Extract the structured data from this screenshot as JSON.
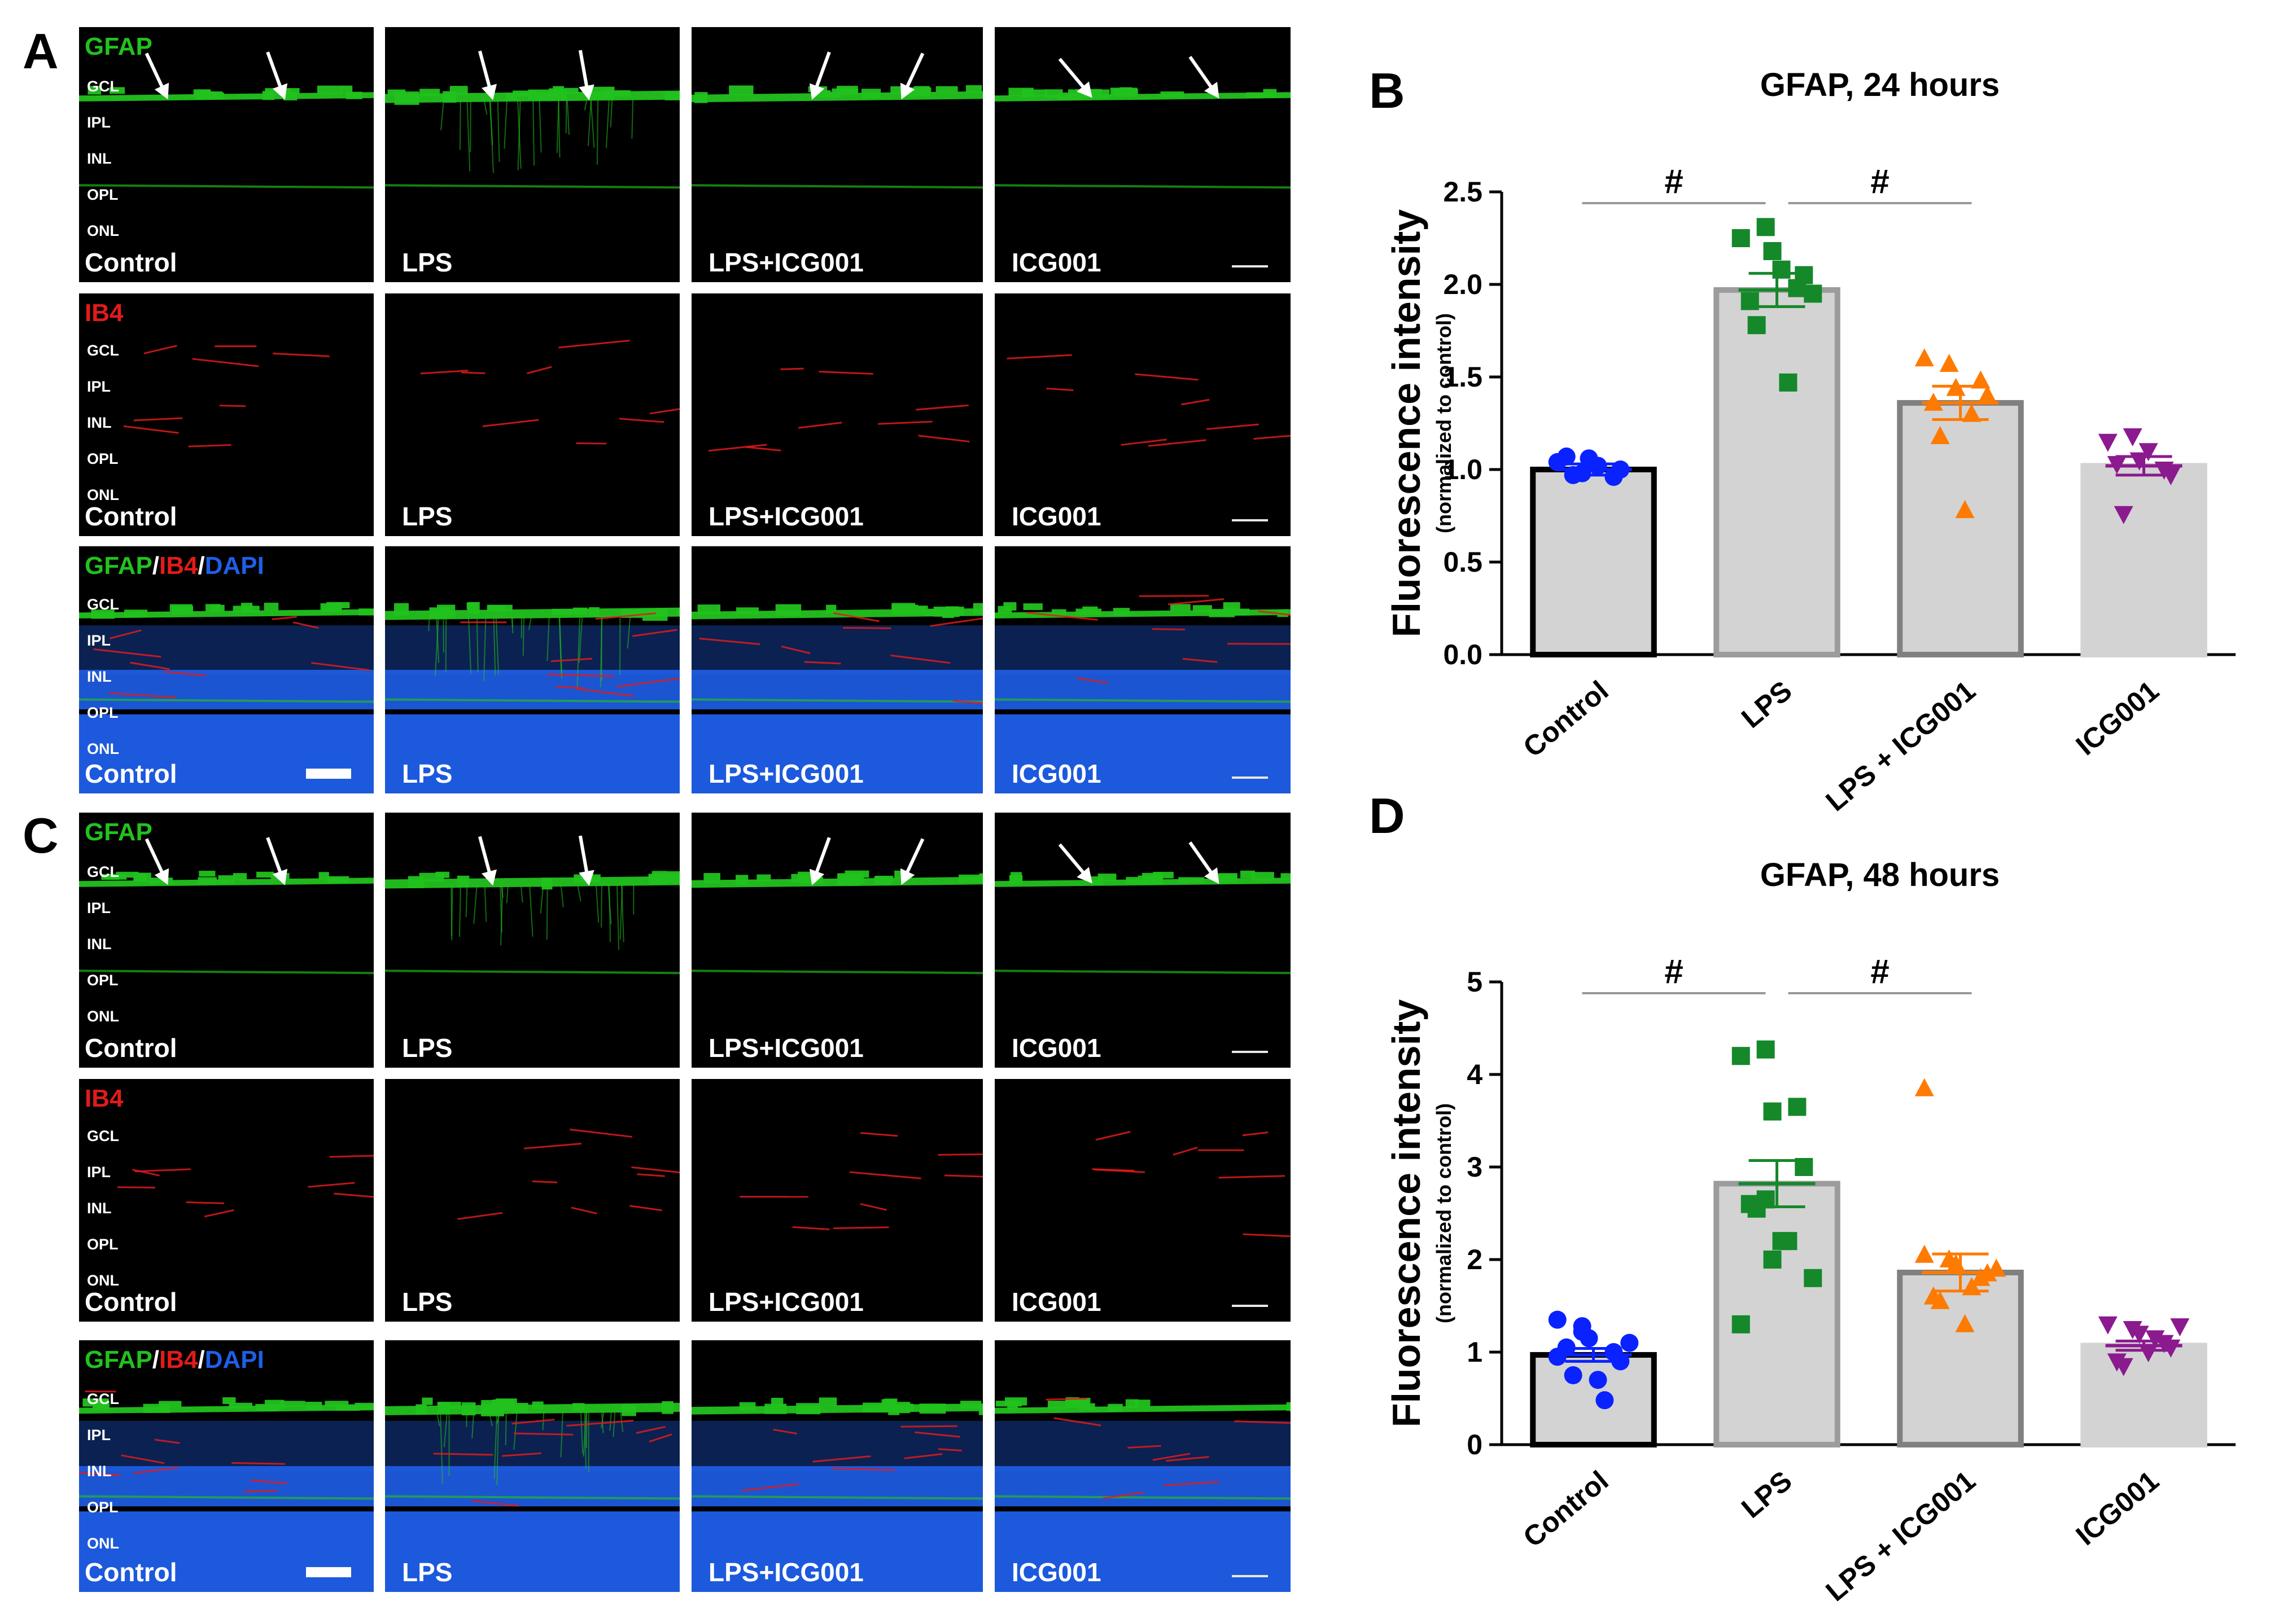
{
  "panels": {
    "a": "A",
    "b": "B",
    "c": "C",
    "d": "D"
  },
  "labels": {
    "gfap": "GFAP",
    "ib4": "IB4",
    "dapi": "DAPI",
    "slash": "/",
    "layers": [
      "GCL",
      "IPL",
      "INL",
      "OPL",
      "ONL"
    ],
    "conditions": [
      "Control",
      "LPS",
      "LPS+ICG001",
      "ICG001"
    ]
  },
  "colors": {
    "gfap": "#22c21e",
    "ib4": "#e11b1b",
    "dapi": "#1f5ee8",
    "control": "#0a22ff",
    "lps": "#15882a",
    "lps_icg": "#ff7a00",
    "icg": "#8b1a8f",
    "bar": "#d3d3d3"
  },
  "chart_data": [
    {
      "type": "bar",
      "title": "GFAP, 24 hours",
      "ylabel": "Fluorescence intensity",
      "ylabel_sub": "(normalized to control)",
      "categories": [
        "Control",
        "LPS",
        "LPS + ICG001",
        "ICG001"
      ],
      "values": [
        1.0,
        1.97,
        1.36,
        1.02
      ],
      "sem": [
        0.03,
        0.09,
        0.09,
        0.05
      ],
      "ylim": [
        0,
        2.5
      ],
      "yticks": [
        "0.0",
        "0.5",
        "1.0",
        "1.5",
        "2.0",
        "2.5"
      ],
      "significance": [
        {
          "from": 0,
          "to": 1,
          "label": "#"
        },
        {
          "from": 1,
          "to": 2,
          "label": "#"
        }
      ],
      "points": [
        [
          1.04,
          0.98,
          1.06,
          0.96,
          1.0,
          1.07,
          0.97,
          1.02
        ],
        [
          2.25,
          2.31,
          2.18,
          1.98,
          2.05,
          1.91,
          1.78,
          2.08,
          1.47,
          1.95
        ],
        [
          1.6,
          1.57,
          1.44,
          1.48,
          1.4,
          1.36,
          1.18,
          0.78,
          1.3
        ],
        [
          1.15,
          1.18,
          1.05,
          1.0,
          0.97,
          1.03,
          0.76,
          1.1
        ]
      ]
    },
    {
      "type": "bar",
      "title": "GFAP, 48 hours",
      "ylabel": "Fluorescence intensity",
      "ylabel_sub": "(normalized to control)",
      "categories": [
        "Control",
        "LPS",
        "LPS + ICG001",
        "ICG001"
      ],
      "values": [
        0.97,
        2.82,
        1.86,
        1.07
      ],
      "sem": [
        0.07,
        0.25,
        0.2,
        0.05
      ],
      "ylim": [
        0,
        5
      ],
      "yticks": [
        "0",
        "1",
        "2",
        "3",
        "4",
        "5"
      ],
      "significance": [
        {
          "from": 0,
          "to": 1,
          "label": "#"
        },
        {
          "from": 1,
          "to": 2,
          "label": "#"
        }
      ],
      "points": [
        [
          1.35,
          1.28,
          1.15,
          1.0,
          0.9,
          1.05,
          0.75,
          0.7,
          0.48,
          1.1,
          0.95,
          1.22
        ],
        [
          4.2,
          4.27,
          3.6,
          3.65,
          3.0,
          2.6,
          2.55,
          2.2,
          2.2,
          1.8,
          1.3,
          2.65,
          2.0
        ],
        [
          3.85,
          2.0,
          1.95,
          1.8,
          1.85,
          1.6,
          1.55,
          1.3,
          1.7,
          1.9,
          2.05
        ],
        [
          1.3,
          1.25,
          1.2,
          1.1,
          1.05,
          0.9,
          0.85,
          1.0,
          1.15,
          1.28
        ]
      ]
    }
  ]
}
